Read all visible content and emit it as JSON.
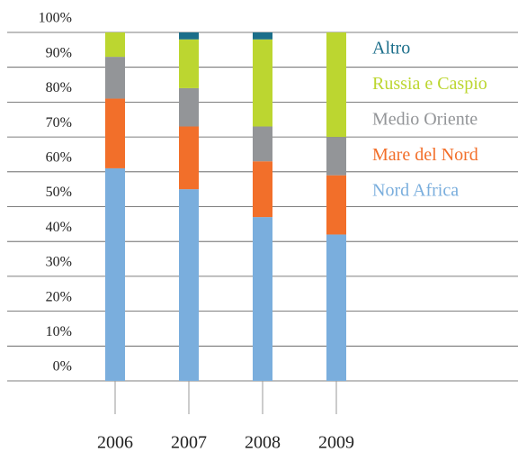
{
  "chart_data": {
    "type": "bar",
    "stacked": true,
    "categories": [
      "2006",
      "2007",
      "2008",
      "2009"
    ],
    "series": [
      {
        "name": "Nord Africa",
        "color": "#7aaedd",
        "values": [
          61,
          55,
          47,
          42
        ]
      },
      {
        "name": "Mare del Nord",
        "color": "#f26f2a",
        "values": [
          20,
          18,
          16,
          17
        ]
      },
      {
        "name": "Medio Oriente",
        "color": "#939598",
        "values": [
          12,
          11,
          10,
          11
        ]
      },
      {
        "name": "Russia e Caspio",
        "color": "#bcd630",
        "values": [
          7,
          14,
          25,
          30
        ]
      },
      {
        "name": "Altro",
        "color": "#1b6e8a",
        "values": [
          0,
          2,
          2,
          0
        ]
      }
    ],
    "ylim": [
      0,
      100
    ],
    "yticks": [
      {
        "value": 0,
        "label": "0%"
      },
      {
        "value": 10,
        "label": "10%"
      },
      {
        "value": 20,
        "label": "20%"
      },
      {
        "value": 30,
        "label": "30%"
      },
      {
        "value": 40,
        "label": "40%"
      },
      {
        "value": 50,
        "label": "50%"
      },
      {
        "value": 60,
        "label": "60%"
      },
      {
        "value": 70,
        "label": "70%"
      },
      {
        "value": 80,
        "label": "80%"
      },
      {
        "value": 90,
        "label": "90%"
      },
      {
        "value": 100,
        "label": "100%"
      }
    ],
    "grid": true,
    "legend": "right"
  }
}
